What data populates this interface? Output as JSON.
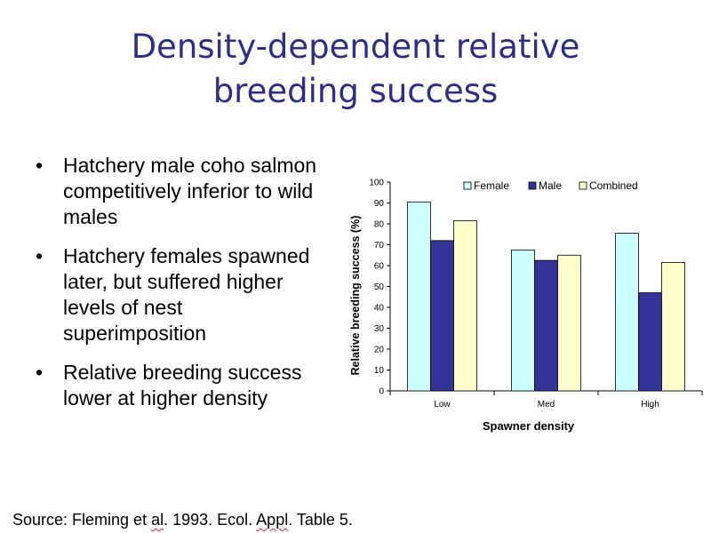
{
  "slide": {
    "title_line1": "Density-dependent relative",
    "title_line2": "breeding success",
    "bullet_marker": "•",
    "bullets": [
      "Hatchery male coho salmon competitively inferior to wild males",
      "Hatchery females spawned later, but suffered higher levels of nest superimposition",
      "Relative breeding success lower at higher density"
    ],
    "source": {
      "prefix": "Source: Fleming et ",
      "flag1": "al",
      "middle": ". 1993. Ecol. ",
      "flag2": "Appl",
      "suffix": ". Table 5."
    }
  },
  "chart_data": {
    "type": "bar",
    "categories": [
      "Low",
      "Med",
      "High"
    ],
    "series": [
      {
        "name": "Female",
        "values": [
          90.5,
          67.5,
          75.5
        ],
        "color": "#ccffff"
      },
      {
        "name": "Male",
        "values": [
          72,
          62.5,
          47
        ],
        "color": "#333399"
      },
      {
        "name": "Combined",
        "values": [
          81.5,
          65,
          61.5
        ],
        "color": "#ffffcc"
      }
    ],
    "xlabel": "Spawner density",
    "ylabel": "Relative breeding success (%)",
    "ylim": [
      0,
      100
    ],
    "yticks": [
      0,
      10,
      20,
      30,
      40,
      50,
      60,
      70,
      80,
      90,
      100
    ],
    "legend_position": "top",
    "grid": false
  }
}
